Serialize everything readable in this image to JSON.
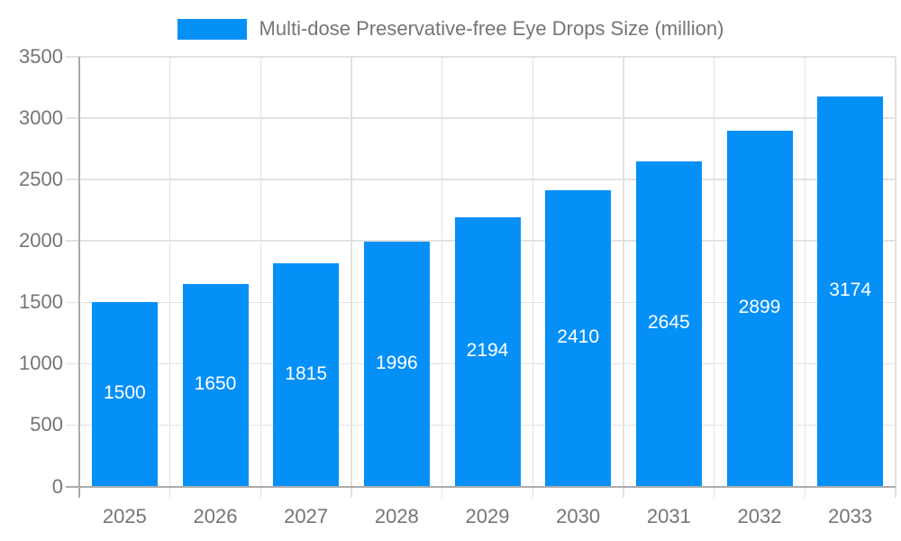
{
  "chart_data": {
    "type": "bar",
    "title": "Multi-dose Preservative-free Eye Drops Size (million)",
    "categories": [
      "2025",
      "2026",
      "2027",
      "2028",
      "2029",
      "2030",
      "2031",
      "2032",
      "2033"
    ],
    "series": [
      {
        "name": "Multi-dose Preservative-free Eye Drops Size (million)",
        "values": [
          1500,
          1650,
          1815,
          1996,
          2194,
          2410,
          2645,
          2899,
          3174
        ]
      }
    ],
    "bar_value_labels": [
      "1500",
      "1650",
      "1815",
      "1996",
      "2194",
      "2410",
      "2645",
      "2899",
      "3174"
    ],
    "xlabel": "",
    "ylabel": "",
    "ylim": [
      0,
      3500
    ],
    "y_ticks": [
      0,
      500,
      1000,
      1500,
      2000,
      2500,
      3000,
      3500
    ],
    "y_tick_labels": [
      "0",
      "500",
      "1000",
      "1500",
      "2000",
      "2500",
      "3000",
      "3500"
    ],
    "grid": "on",
    "legend_position": "top",
    "colors": {
      "bar": "#0590f8",
      "bar_label": "#ffffff",
      "axis": "#ababab",
      "gridline": "#e2e2e2",
      "tick_label": "#757575",
      "legend_text": "#757575",
      "background": "#ffffff"
    }
  }
}
